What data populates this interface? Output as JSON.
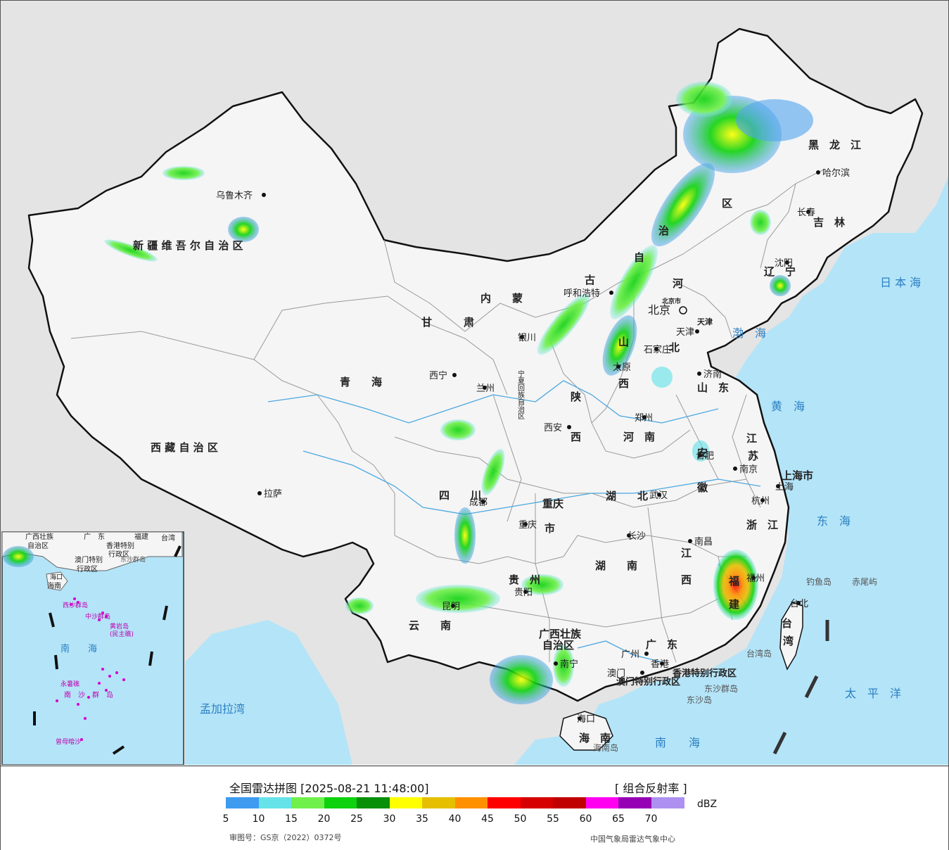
{
  "title": "全国雷达拼图 [2025-08-21 11:48:00]",
  "product": "[ 组合反射率 ]",
  "unit": "dBZ",
  "review_number": "审图号：GS京（2022）0372号",
  "agency": "中国气象局雷达气象中心",
  "legend": {
    "colors": [
      "#3e9bef",
      "#65e3e8",
      "#70f04a",
      "#0dd20d",
      "#099009",
      "#ffff00",
      "#e6c000",
      "#ff9000",
      "#ff0000",
      "#d60000",
      "#c00000",
      "#ff00f0",
      "#9600b4",
      "#ad90f0"
    ],
    "ticks": [
      "5",
      "10",
      "15",
      "20",
      "25",
      "30",
      "35",
      "40",
      "45",
      "50",
      "55",
      "60",
      "65",
      "70"
    ]
  },
  "map": {
    "colors": {
      "land": "#f5f5f5",
      "sea": "#b4e4f8",
      "foreign": "#e4e4e4",
      "border": "#111111",
      "province": "#9a9a9a",
      "river": "#4aa8e0"
    },
    "regions": [
      {
        "id": "xinjiang",
        "text": "新 疆 维 吾 尔 自 治 区"
      },
      {
        "id": "tibet",
        "text": "西 藏 自 治 区"
      },
      {
        "id": "qinghai",
        "text": "青　　海"
      },
      {
        "id": "gansu",
        "text": "甘　　　肃"
      },
      {
        "id": "neimenggu1",
        "text": "内　　蒙"
      },
      {
        "id": "neimenggu2",
        "text": "古"
      },
      {
        "id": "neimenggu3",
        "text": "自"
      },
      {
        "id": "neimenggu4",
        "text": "治"
      },
      {
        "id": "neimenggu5",
        "text": "区"
      },
      {
        "id": "heilongjiang",
        "text": "黑　龙　江"
      },
      {
        "id": "jilin",
        "text": "吉　林"
      },
      {
        "id": "liaoning",
        "text": "辽　宁"
      },
      {
        "id": "hebei1",
        "text": "河"
      },
      {
        "id": "hebei2",
        "text": "北"
      },
      {
        "id": "shanxi1",
        "text": "山"
      },
      {
        "id": "shanxi2",
        "text": "西"
      },
      {
        "id": "shandong",
        "text": "山　东"
      },
      {
        "id": "shaanxi1",
        "text": "陕"
      },
      {
        "id": "shaanxi2",
        "text": "西"
      },
      {
        "id": "henan",
        "text": "河　南"
      },
      {
        "id": "jiangsu1",
        "text": "江"
      },
      {
        "id": "jiangsu2",
        "text": "苏"
      },
      {
        "id": "anhui1",
        "text": "安"
      },
      {
        "id": "anhui2",
        "text": "徽"
      },
      {
        "id": "shanghai",
        "text": "上海市"
      },
      {
        "id": "zhejiang",
        "text": "浙　江"
      },
      {
        "id": "hubei",
        "text": "湖　　北"
      },
      {
        "id": "sichuan",
        "text": "四　　川"
      },
      {
        "id": "chongqing1",
        "text": "重庆"
      },
      {
        "id": "chongqing2",
        "text": "市"
      },
      {
        "id": "hunan",
        "text": "湖　　南"
      },
      {
        "id": "jiangxi1",
        "text": "江"
      },
      {
        "id": "jiangxi2",
        "text": "西"
      },
      {
        "id": "fujian1",
        "text": "福"
      },
      {
        "id": "fujian2",
        "text": "建"
      },
      {
        "id": "guizhou",
        "text": "贵　州"
      },
      {
        "id": "yunnan",
        "text": "云　　南"
      },
      {
        "id": "guangxi1",
        "text": "广西壮族"
      },
      {
        "id": "guangxi2",
        "text": "自治区"
      },
      {
        "id": "guangdong",
        "text": "广　东"
      },
      {
        "id": "hainan",
        "text": "海　南"
      },
      {
        "id": "taiwan1",
        "text": "台"
      },
      {
        "id": "taiwan2",
        "text": "湾"
      },
      {
        "id": "ningxia",
        "text": "宁夏回族自治区"
      },
      {
        "id": "hk",
        "text": "香港特别行政区"
      },
      {
        "id": "macao",
        "text": "澳门特别行政区"
      },
      {
        "id": "beijing_prov",
        "text": "北京市"
      },
      {
        "id": "tianjin_prov",
        "text": "天津"
      }
    ],
    "cities": [
      {
        "id": "urumqi",
        "text": "乌鲁木齐"
      },
      {
        "id": "lhasa",
        "text": "拉萨"
      },
      {
        "id": "xining",
        "text": "西宁"
      },
      {
        "id": "lanzhou",
        "text": "兰州"
      },
      {
        "id": "yinchuan",
        "text": "银川"
      },
      {
        "id": "hohhot",
        "text": "呼和浩特"
      },
      {
        "id": "harbin",
        "text": "哈尔滨"
      },
      {
        "id": "changchun",
        "text": "长春"
      },
      {
        "id": "shenyang",
        "text": "沈阳"
      },
      {
        "id": "beijing",
        "text": "北京"
      },
      {
        "id": "tianjin",
        "text": "天津"
      },
      {
        "id": "shijiazhuang",
        "text": "石家庄"
      },
      {
        "id": "taiyuan",
        "text": "太原"
      },
      {
        "id": "jinan",
        "text": "济南"
      },
      {
        "id": "xian",
        "text": "西安"
      },
      {
        "id": "zhengzhou",
        "text": "郑州"
      },
      {
        "id": "hefei",
        "text": "合肥"
      },
      {
        "id": "nanjing",
        "text": "南京"
      },
      {
        "id": "shanghai_c",
        "text": "上海"
      },
      {
        "id": "hangzhou",
        "text": "杭州"
      },
      {
        "id": "wuhan",
        "text": "武汉"
      },
      {
        "id": "chengdu",
        "text": "成都"
      },
      {
        "id": "chongqing",
        "text": "重庆"
      },
      {
        "id": "changsha",
        "text": "长沙"
      },
      {
        "id": "nanchang",
        "text": "南昌"
      },
      {
        "id": "fuzhou",
        "text": "福州"
      },
      {
        "id": "guiyang",
        "text": "贵阳"
      },
      {
        "id": "kunming",
        "text": "昆明"
      },
      {
        "id": "nanning",
        "text": "南宁"
      },
      {
        "id": "guangzhou",
        "text": "广州"
      },
      {
        "id": "hongkong",
        "text": "香港"
      },
      {
        "id": "macau",
        "text": "澳门"
      },
      {
        "id": "haikou",
        "text": "海口"
      },
      {
        "id": "taibei",
        "text": "台北"
      }
    ],
    "seas": [
      {
        "id": "bohai",
        "text": "渤　海"
      },
      {
        "id": "huanghai",
        "text": "黄　海"
      },
      {
        "id": "donghai",
        "text": "东　海"
      },
      {
        "id": "nanhai",
        "text": "南　　海"
      },
      {
        "id": "riben",
        "text": "日 本 海"
      },
      {
        "id": "taipingyang",
        "text": "太　平　洋"
      },
      {
        "id": "mengjiala",
        "text": "孟加拉湾"
      }
    ],
    "islands": [
      {
        "id": "diaoyu",
        "text": "钓鱼岛"
      },
      {
        "id": "chiwei",
        "text": "赤尾屿"
      },
      {
        "id": "dongsha",
        "text": "东沙群岛"
      },
      {
        "id": "dongsha_d",
        "text": "东沙岛"
      },
      {
        "id": "hainan_d",
        "text": "海南岛"
      },
      {
        "id": "taiwan_d",
        "text": "台湾岛"
      }
    ],
    "inset": [
      {
        "id": "i_nanhai",
        "text": "南　　海"
      },
      {
        "id": "i_xisha",
        "text": "西沙群岛"
      },
      {
        "id": "i_zhongsha",
        "text": "中沙群岛"
      },
      {
        "id": "i_huangyan",
        "text": "黄岩岛"
      },
      {
        "id": "i_minzhujiao",
        "text": "(民主礁)"
      },
      {
        "id": "i_nansha",
        "text": "南　沙　群　岛"
      },
      {
        "id": "i_yongshu",
        "text": "永暑礁"
      },
      {
        "id": "i_zengmu",
        "text": "曾母暗沙"
      },
      {
        "id": "i_haikou",
        "text": "海口"
      },
      {
        "id": "i_hainan",
        "text": "海南"
      },
      {
        "id": "i_hk",
        "text": "香港特别"
      },
      {
        "id": "i_hk2",
        "text": "行政区"
      },
      {
        "id": "i_macao",
        "text": "澳门特别"
      },
      {
        "id": "i_macao2",
        "text": "行政区"
      },
      {
        "id": "i_dongsha",
        "text": "东沙群岛"
      },
      {
        "id": "i_taiwan",
        "text": "台湾"
      },
      {
        "id": "i_guangdong",
        "text": "广　东"
      },
      {
        "id": "i_guangxi",
        "text": "广西壮族"
      },
      {
        "id": "i_guangxi2",
        "text": "自治区"
      },
      {
        "id": "i_fujian",
        "text": "福建"
      }
    ]
  }
}
